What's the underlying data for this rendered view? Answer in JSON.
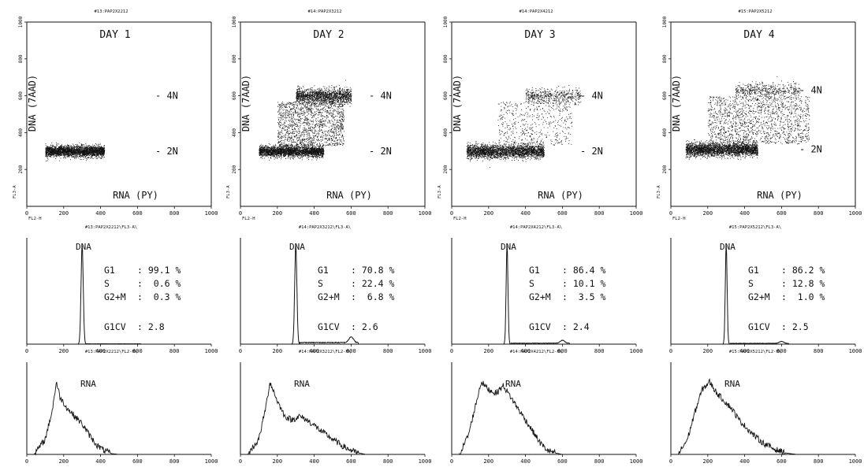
{
  "chart_data": [
    {
      "type": "scatter",
      "panel": "scatter-day-1",
      "header": "#13:PAP2X2212",
      "title": "DAY 1",
      "xlabel": "RNA (PY)",
      "ylabel": "DNA (7AAD)",
      "x_axis_code": "FL2-H",
      "y_axis_code": "FL3-A",
      "xlim": [
        0,
        1000
      ],
      "ylim": [
        0,
        1000
      ],
      "x_ticks": [
        "0",
        "200",
        "400",
        "600",
        "800",
        "1000"
      ],
      "y_ticks": [
        "200",
        "400",
        "600",
        "800",
        "1000"
      ],
      "markers": [
        {
          "label": "- 4N",
          "y": 600
        },
        {
          "label": "- 2N",
          "y": 300
        }
      ],
      "clusters": [
        {
          "x": [
            100,
            420
          ],
          "y_center": 300,
          "y_spread": 15,
          "density": "high"
        }
      ]
    },
    {
      "type": "scatter",
      "panel": "scatter-day-2",
      "header": "#14:PAP2X3212",
      "title": "DAY 2",
      "xlabel": "RNA (PY)",
      "ylabel": "DNA (7AAD)",
      "x_axis_code": "FL2-H",
      "y_axis_code": "FL3-A",
      "xlim": [
        0,
        1000
      ],
      "ylim": [
        0,
        1000
      ],
      "x_ticks": [
        "0",
        "200",
        "400",
        "600",
        "800",
        "1000"
      ],
      "y_ticks": [
        "200",
        "400",
        "600",
        "800",
        "1000"
      ],
      "markers": [
        {
          "label": "- 4N",
          "y": 600
        },
        {
          "label": "- 2N",
          "y": 300
        }
      ],
      "clusters": [
        {
          "x": [
            100,
            450
          ],
          "y_center": 300,
          "y_spread": 15,
          "density": "high"
        },
        {
          "x": [
            200,
            560
          ],
          "y_center": 450,
          "y_spread": 120,
          "density": "medium"
        },
        {
          "x": [
            300,
            600
          ],
          "y_center": 600,
          "y_spread": 20,
          "density": "medium"
        }
      ]
    },
    {
      "type": "scatter",
      "panel": "scatter-day-3",
      "header": "#14:PAP2X4212",
      "title": "DAY 3",
      "xlabel": "RNA (PY)",
      "ylabel": "DNA (7AAD)",
      "x_axis_code": "FL2-H",
      "y_axis_code": "FL3-A",
      "xlim": [
        0,
        1000
      ],
      "ylim": [
        0,
        1000
      ],
      "x_ticks": [
        "0",
        "200",
        "400",
        "600",
        "800",
        "1000"
      ],
      "y_ticks": [
        "200",
        "400",
        "600",
        "800",
        "1000"
      ],
      "markers": [
        {
          "label": "- 4N",
          "y": 600
        },
        {
          "label": "- 2N",
          "y": 300
        }
      ],
      "clusters": [
        {
          "x": [
            80,
            500
          ],
          "y_center": 300,
          "y_spread": 18,
          "density": "high"
        },
        {
          "x": [
            250,
            650
          ],
          "y_center": 450,
          "y_spread": 120,
          "density": "low"
        },
        {
          "x": [
            400,
            700
          ],
          "y_center": 600,
          "y_spread": 20,
          "density": "low"
        }
      ]
    },
    {
      "type": "scatter",
      "panel": "scatter-day-4",
      "header": "#15:PAP2X5212",
      "title": "DAY 4",
      "xlabel": "RNA (PY)",
      "ylabel": "DNA (7AAD)",
      "x_axis_code": "FL2-H",
      "y_axis_code": "FL3-A",
      "xlim": [
        0,
        1000
      ],
      "ylim": [
        0,
        1000
      ],
      "x_ticks": [
        "0",
        "200",
        "400",
        "600",
        "800",
        "1000"
      ],
      "y_ticks": [
        "200",
        "400",
        "600",
        "800",
        "1000"
      ],
      "markers": [
        {
          "label": "- 4N",
          "y": 630
        },
        {
          "label": "- 2N",
          "y": 310
        }
      ],
      "clusters": [
        {
          "x": [
            80,
            470
          ],
          "y_center": 310,
          "y_spread": 18,
          "density": "high"
        },
        {
          "x": [
            200,
            750
          ],
          "y_center": 470,
          "y_spread": 130,
          "density": "medium"
        },
        {
          "x": [
            350,
            700
          ],
          "y_center": 630,
          "y_spread": 20,
          "density": "low"
        }
      ]
    },
    {
      "type": "line",
      "panel": "dna-histogram-day-1",
      "header": "#13:PAP2X2212\\FL3-A\\",
      "title": "DNA",
      "xlim": [
        0,
        1000
      ],
      "x_ticks": [
        "0",
        "200",
        "400",
        "600",
        "800",
        "1000"
      ],
      "stats": [
        {
          "label": "G1",
          "value": ": 99.1 %"
        },
        {
          "label": "S",
          "value": ":  0.6 %"
        },
        {
          "label": "G2+M",
          "value": ":  0.3 %"
        },
        {
          "label": "G1CV",
          "value": ": 2.8"
        }
      ],
      "peaks": [
        {
          "x": 300,
          "height": 1.0,
          "width": 6
        }
      ],
      "tail": {
        "from": 320,
        "to": 620,
        "level": 0.004
      }
    },
    {
      "type": "line",
      "panel": "dna-histogram-day-2",
      "header": "#14:PAP2X3212\\FL3-A\\",
      "title": "DNA",
      "xlim": [
        0,
        1000
      ],
      "x_ticks": [
        "0",
        "200",
        "400",
        "600",
        "800",
        "1000"
      ],
      "stats": [
        {
          "label": "G1",
          "value": ": 70.8 %"
        },
        {
          "label": "S",
          "value": ": 22.4 %"
        },
        {
          "label": "G2+M",
          "value": ":  6.8 %"
        },
        {
          "label": "G1CV",
          "value": ": 2.6"
        }
      ],
      "peaks": [
        {
          "x": 300,
          "height": 1.0,
          "width": 6
        },
        {
          "x": 600,
          "height": 0.06,
          "width": 12
        }
      ],
      "tail": {
        "from": 320,
        "to": 640,
        "level": 0.02
      }
    },
    {
      "type": "line",
      "panel": "dna-histogram-day-3",
      "header": "#14:PAP2X4212\\FL3-A\\",
      "title": "DNA",
      "xlim": [
        0,
        1000
      ],
      "x_ticks": [
        "0",
        "200",
        "400",
        "600",
        "800",
        "1000"
      ],
      "stats": [
        {
          "label": "G1",
          "value": ": 86.4 %"
        },
        {
          "label": "S",
          "value": ": 10.1 %"
        },
        {
          "label": "G2+M",
          "value": ":  3.5 %"
        },
        {
          "label": "G1CV",
          "value": ": 2.4"
        }
      ],
      "peaks": [
        {
          "x": 300,
          "height": 1.0,
          "width": 5
        },
        {
          "x": 600,
          "height": 0.03,
          "width": 12
        }
      ],
      "tail": {
        "from": 320,
        "to": 640,
        "level": 0.012
      }
    },
    {
      "type": "line",
      "panel": "dna-histogram-day-4",
      "header": "#15:PAP2X5212\\FL3-A\\",
      "title": "DNA",
      "xlim": [
        0,
        1000
      ],
      "x_ticks": [
        "0",
        "200",
        "400",
        "600",
        "800",
        "1000"
      ],
      "stats": [
        {
          "label": "G1",
          "value": ": 86.2 %"
        },
        {
          "label": "S",
          "value": ": 12.8 %"
        },
        {
          "label": "G2+M",
          "value": ":  1.0 %"
        },
        {
          "label": "G1CV",
          "value": ": 2.5"
        }
      ],
      "peaks": [
        {
          "x": 300,
          "height": 1.0,
          "width": 5
        },
        {
          "x": 600,
          "height": 0.02,
          "width": 12
        }
      ],
      "tail": {
        "from": 320,
        "to": 640,
        "level": 0.01
      }
    },
    {
      "type": "line",
      "panel": "rna-histogram-day-1",
      "header": "#13:PAP2X2212\\FL2-H\\",
      "title": "RNA",
      "xlim": [
        0,
        1000
      ],
      "x_ticks": [
        "0",
        "200",
        "400",
        "600",
        "800",
        "1000"
      ],
      "profile": {
        "x": [
          40,
          100,
          140,
          160,
          180,
          220,
          260,
          300,
          340,
          380,
          420,
          460,
          500
        ],
        "y": [
          0,
          0.2,
          0.6,
          0.95,
          0.75,
          0.6,
          0.5,
          0.4,
          0.25,
          0.12,
          0.05,
          0.01,
          0
        ]
      }
    },
    {
      "type": "line",
      "panel": "rna-histogram-day-2",
      "header": "#14:PAP2X3212\\FL2-H\\",
      "title": "RNA",
      "xlim": [
        0,
        1000
      ],
      "x_ticks": [
        "0",
        "200",
        "400",
        "600",
        "800",
        "1000"
      ],
      "profile": {
        "x": [
          40,
          100,
          140,
          160,
          200,
          240,
          280,
          320,
          360,
          400,
          440,
          500,
          560,
          620,
          680
        ],
        "y": [
          0,
          0.2,
          0.65,
          0.95,
          0.7,
          0.5,
          0.45,
          0.5,
          0.45,
          0.38,
          0.3,
          0.2,
          0.1,
          0.03,
          0
        ]
      }
    },
    {
      "type": "line",
      "panel": "rna-histogram-day-3",
      "header": "#14:PAP2X4212\\FL2-H\\",
      "title": "RNA",
      "xlim": [
        0,
        1000
      ],
      "x_ticks": [
        "0",
        "200",
        "400",
        "600",
        "800",
        "1000"
      ],
      "profile": {
        "x": [
          40,
          90,
          130,
          160,
          200,
          240,
          280,
          320,
          360,
          400,
          440,
          480,
          520,
          560,
          600
        ],
        "y": [
          0,
          0.25,
          0.65,
          0.95,
          0.85,
          0.8,
          0.9,
          0.75,
          0.6,
          0.45,
          0.3,
          0.15,
          0.05,
          0.02,
          0
        ]
      }
    },
    {
      "type": "line",
      "panel": "rna-histogram-day-4",
      "header": "#15:PAP2X5212\\FL2-H\\",
      "title": "RNA",
      "xlim": [
        0,
        1000
      ],
      "x_ticks": [
        "0",
        "200",
        "400",
        "600",
        "800",
        "1000"
      ],
      "profile": {
        "x": [
          40,
          90,
          130,
          170,
          210,
          250,
          290,
          330,
          370,
          410,
          450,
          500,
          560,
          620,
          680
        ],
        "y": [
          0,
          0.2,
          0.55,
          0.85,
          0.95,
          0.8,
          0.7,
          0.6,
          0.45,
          0.35,
          0.25,
          0.15,
          0.07,
          0.02,
          0
        ]
      }
    }
  ]
}
